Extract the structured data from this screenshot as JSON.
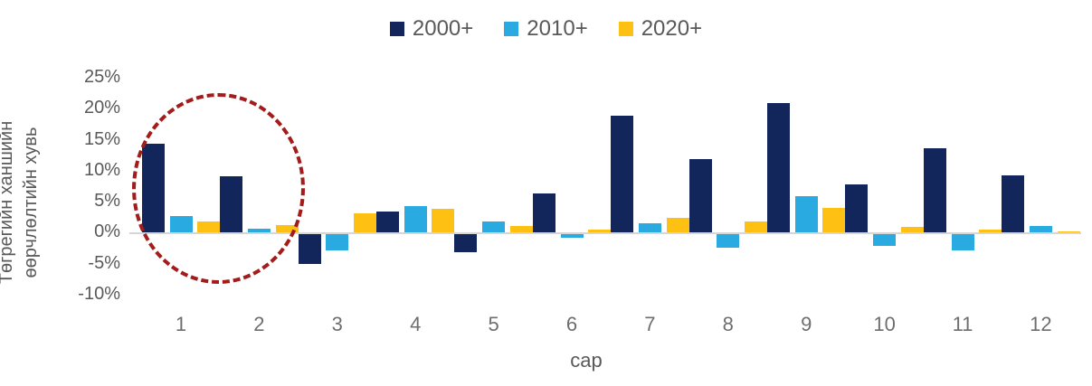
{
  "legend": [
    {
      "label": "2000+",
      "color": "#13265c"
    },
    {
      "label": "2010+",
      "color": "#29abe2"
    },
    {
      "label": "2020+",
      "color": "#fdc013"
    }
  ],
  "y_axis": {
    "title_line1": "Төгрегийн ханшийн",
    "title_line2": "өөрчлөлтийн хувь",
    "ticks": [
      "25%",
      "20%",
      "15%",
      "10%",
      "5%",
      "0%",
      "-5%",
      "-10%"
    ]
  },
  "x_axis": {
    "label": "сар",
    "ticks": [
      "1",
      "2",
      "3",
      "4",
      "5",
      "6",
      "7",
      "8",
      "9",
      "10",
      "11",
      "12"
    ]
  },
  "chart_data": {
    "type": "bar",
    "title": "",
    "xlabel": "сар",
    "ylabel": "Төгрегийн ханшийн өөрчлөлтийн хувь",
    "ylim": [
      -10,
      25
    ],
    "grid": false,
    "legend_position": "top-center",
    "categories": [
      "1",
      "2",
      "3",
      "4",
      "5",
      "6",
      "7",
      "8",
      "9",
      "10",
      "11",
      "12"
    ],
    "series": [
      {
        "name": "2000+",
        "color": "#13265c",
        "values": [
          14.3,
          9.0,
          -5.0,
          3.3,
          -3.0,
          6.2,
          18.8,
          11.8,
          20.8,
          7.7,
          13.6,
          9.2
        ]
      },
      {
        "name": "2010+",
        "color": "#29abe2",
        "values": [
          2.6,
          0.6,
          -2.7,
          4.2,
          1.8,
          -0.7,
          1.5,
          -2.3,
          5.8,
          -2.1,
          -2.8,
          1.0
        ]
      },
      {
        "name": "2020+",
        "color": "#fdc013",
        "values": [
          1.7,
          1.2,
          3.0,
          3.8,
          1.0,
          0.5,
          2.4,
          1.8,
          3.9,
          0.9,
          0.4,
          0.1
        ]
      }
    ],
    "annotation": {
      "shape": "dashed-ellipse",
      "color": "#a31c1c",
      "around_categories": [
        "1",
        "2"
      ]
    }
  }
}
